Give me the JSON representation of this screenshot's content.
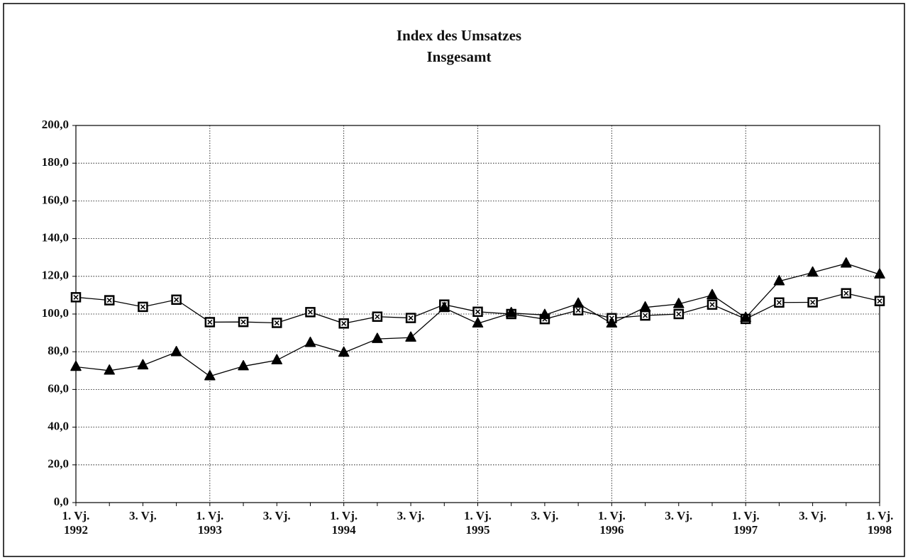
{
  "chart_data": {
    "type": "line",
    "title": "Index des Umsatzes",
    "subtitle": "Insgesamt",
    "categories": [
      "1. Vj.\n1992",
      null,
      "3. Vj.",
      null,
      "1. Vj.\n1993",
      null,
      "3. Vj.",
      null,
      "1. Vj.\n1994",
      null,
      "3. Vj.",
      null,
      "1. Vj.\n1995",
      null,
      "3. Vj.",
      null,
      "1. Vj.\n1996",
      null,
      "3. Vj.",
      null,
      "1. Vj.\n1997",
      null,
      "3. Vj.",
      null,
      "1. Vj.\n1998"
    ],
    "series": [
      {
        "color": "#000000",
        "marker": "square",
        "values": [
          108.9,
          107.3,
          103.8,
          107.6,
          95.7,
          95.8,
          95.3,
          101,
          95,
          98.6,
          97.9,
          105,
          101.2,
          100,
          97.3,
          102,
          97.8,
          99.2,
          100,
          105,
          97.4,
          106.1,
          106.2,
          111,
          106.9
        ]
      },
      {
        "color": "#000000",
        "marker": "triangle",
        "values": [
          72,
          70,
          72.8,
          79.8,
          67,
          72.3,
          75.5,
          84.7,
          79.5,
          86.8,
          87.5,
          103.2,
          95,
          100.5,
          99.5,
          105.5,
          95,
          103.5,
          105.3,
          110,
          98,
          117.4,
          122,
          126.8,
          121
        ]
      }
    ],
    "ylim": [
      0,
      200
    ],
    "yticks": [
      {
        "value": 0,
        "label": "0,0"
      },
      {
        "value": 20,
        "label": "20,0"
      },
      {
        "value": 40,
        "label": "40,0"
      },
      {
        "value": 60,
        "label": "60,0"
      },
      {
        "value": 80,
        "label": "80,0"
      },
      {
        "value": 100,
        "label": "100,0"
      },
      {
        "value": 120,
        "label": "120,0"
      },
      {
        "value": 140,
        "label": "140,0"
      },
      {
        "value": 160,
        "label": "160,0"
      },
      {
        "value": 180,
        "label": "180,0"
      },
      {
        "value": 200,
        "label": "200,0"
      }
    ],
    "grid": true
  }
}
